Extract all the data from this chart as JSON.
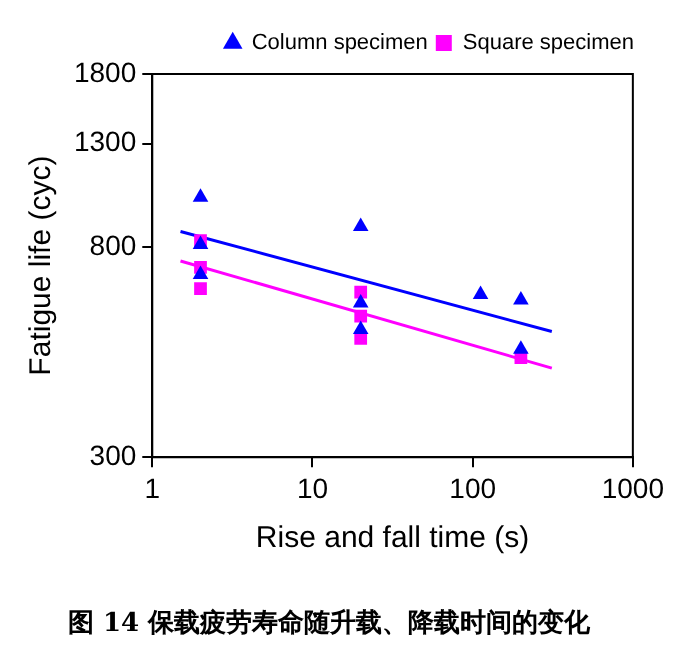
{
  "chart_data": {
    "type": "scatter",
    "title": "图 14 保载疲劳寿命随升载、降载时间的变化",
    "xlabel": "Rise and fall time (s)",
    "ylabel": "Fatigue life (cyc)",
    "log": "xy",
    "xlim": [
      1,
      1000
    ],
    "xticks": [
      1,
      10,
      100,
      1000
    ],
    "ylim": [
      300,
      1800
    ],
    "yticks": [
      300,
      800,
      1300,
      1800
    ],
    "grid": false,
    "legend": "top right",
    "series": [
      {
        "name": "Column specimen",
        "color": "#0000ff",
        "marker": "triangle",
        "x": [
          2,
          2,
          2,
          20,
          20,
          20,
          112,
          200,
          200
        ],
        "values": [
          1012,
          811,
          705,
          882,
          617,
          545,
          642,
          626,
          497
        ]
      },
      {
        "name": "Square specimen",
        "color": "#ff00ff",
        "marker": "square",
        "x": [
          2,
          2,
          2,
          20,
          20,
          20,
          200
        ],
        "values": [
          826,
          729,
          660,
          649,
          580,
          523,
          478
        ]
      },
      {
        "type": "line",
        "color": "#0000ff",
        "marker": "none",
        "x": [
          1.5,
          312
        ],
        "values": [
          862,
          540
        ]
      },
      {
        "type": "line",
        "color": "#ff00ff",
        "marker": "none",
        "x": [
          1.5,
          312
        ],
        "values": [
          751,
          455
        ]
      }
    ]
  }
}
